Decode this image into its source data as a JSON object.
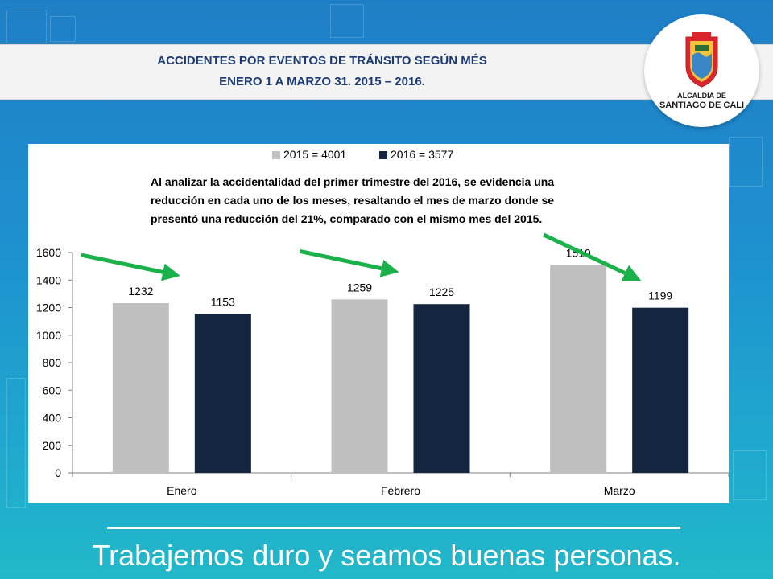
{
  "header": {
    "title_line1": "ACCIDENTES POR EVENTOS  DE TRÁNSITO SEGÚN MÉS",
    "title_line2": "ENERO 1  A MARZO 31. 2015 – 2016."
  },
  "logo": {
    "line1": "ALCALDÍA DE",
    "line2": "SANTIAGO DE CALI"
  },
  "annotation": [
    "Al analizar la accidentalidad del primer trimestre del 2016, se evidencia  una",
    "reducción en  cada uno de los meses, resaltando el mes de marzo donde se",
    "presentó una reducción del 21%, comparado con el mismo mes del 2015."
  ],
  "footer": {
    "slogan": "Trabajemos duro y seamos buenas personas."
  },
  "colors": {
    "series_2015": "#bfbfbf",
    "series_2016": "#14253f",
    "arrow": "#1ab04a",
    "title": "#1b3a73"
  },
  "chart_data": {
    "type": "bar",
    "categories": [
      "Enero",
      "Febrero",
      "Marzo"
    ],
    "series": [
      {
        "name": "2015 = 4001",
        "values": [
          1232,
          1259,
          1510
        ]
      },
      {
        "name": "2016 = 3577",
        "values": [
          1153,
          1225,
          1199
        ]
      }
    ],
    "ylim": [
      0,
      1600
    ],
    "yticks": [
      0,
      200,
      400,
      600,
      800,
      1000,
      1200,
      1400,
      1600
    ],
    "legend_position": "top",
    "grid": false,
    "data_labels": true
  }
}
